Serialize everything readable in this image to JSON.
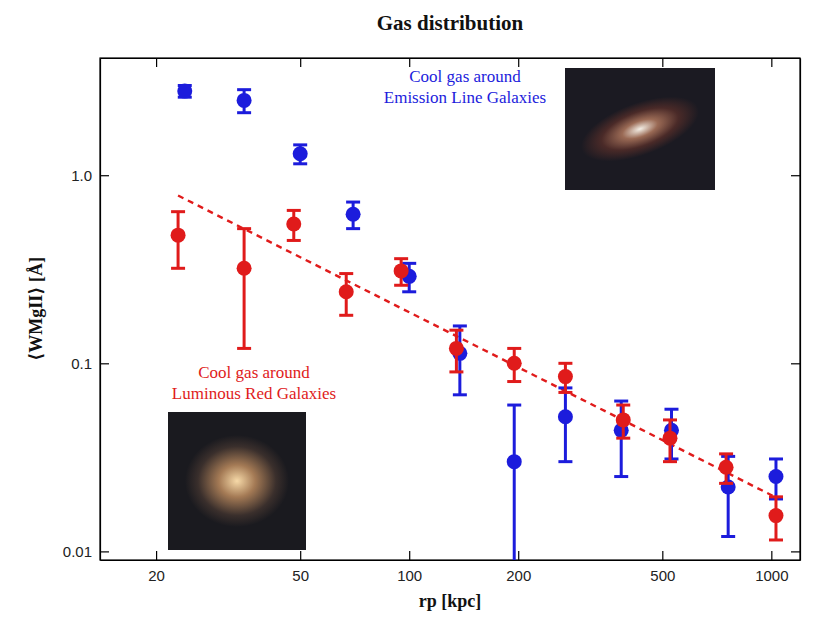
{
  "chart_data": {
    "type": "scatter",
    "title": "Gas distribution",
    "x_label": "rp [kpc]",
    "y_label": "⟨WMgII⟩ [Å]",
    "log": true,
    "grid": false,
    "xlim": [
      14,
      1200
    ],
    "ylim": [
      0.009,
      4.2
    ],
    "xticks": [
      20,
      50,
      100,
      200,
      500,
      1000
    ],
    "yticks": [
      {
        "value": 0.01,
        "label": "0.01"
      },
      0.1,
      {
        "value": 1,
        "label": "1.0"
      }
    ],
    "annotations": [
      {
        "text": [
          "Cool gas around",
          "Emission Line Galaxies"
        ],
        "color": "#1c1cdc"
      },
      {
        "text": [
          "Cool gas around",
          "Luminous Red Galaxies"
        ],
        "color": "#e01b1b"
      }
    ],
    "series": [
      {
        "type": "scatter",
        "marker": "circle",
        "color": "#1c1cdc",
        "x": [
          24,
          35,
          50,
          70,
          100,
          138,
          195,
          270,
          385,
          530,
          760,
          1030
        ],
        "values": [
          2.8,
          2.5,
          1.3,
          0.62,
          0.29,
          0.113,
          0.03,
          0.052,
          0.044,
          0.044,
          0.022,
          0.025
        ],
        "errors": [
          0.2,
          0.35,
          0.15,
          0.1,
          0.05,
          0.045,
          0.03,
          0.022,
          0.019,
          0.013,
          0.01,
          0.006
        ]
      },
      {
        "type": "scatter",
        "marker": "circle",
        "color": "#e01b1b",
        "x": [
          23,
          35,
          48,
          67,
          95,
          135,
          195,
          270,
          390,
          525,
          750,
          1030
        ],
        "values": [
          0.48,
          0.32,
          0.55,
          0.24,
          0.31,
          0.12,
          0.1,
          0.085,
          0.05,
          0.04,
          0.028,
          0.0155
        ],
        "errors": [
          0.16,
          0.2,
          0.1,
          0.06,
          0.05,
          0.03,
          0.02,
          0.015,
          0.01,
          0.01,
          0.005,
          0.004
        ]
      },
      {
        "type": "line",
        "line_style": "dashed",
        "color": "#e01b1b",
        "x": [
          23,
          1050
        ],
        "values": [
          0.78,
          0.019
        ]
      }
    ]
  }
}
